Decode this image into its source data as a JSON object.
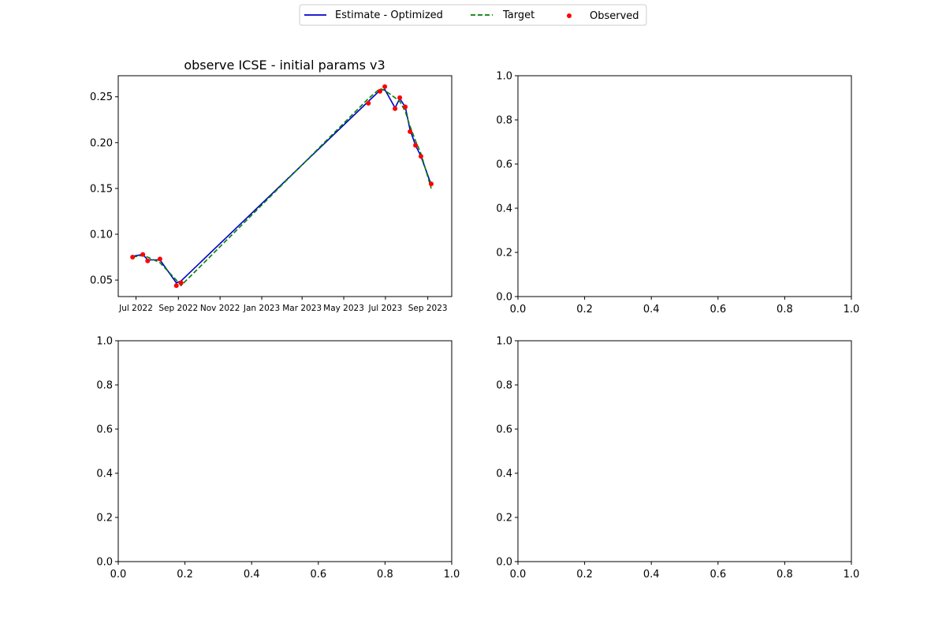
{
  "legend": {
    "entries": [
      {
        "label": "Estimate - Optimized",
        "color": "#0000cc",
        "style": "solid-line"
      },
      {
        "label": "Target",
        "color": "#008000",
        "style": "dashed-line"
      },
      {
        "label": "Observed",
        "color": "#ff0000",
        "style": "marker"
      }
    ]
  },
  "chart_data": [
    {
      "type": "line",
      "title": "observe ICSE - initial params v3",
      "xlabel": "",
      "ylabel": "",
      "x_axis_type": "date",
      "xlim": [
        "2022-06-05",
        "2023-10-06"
      ],
      "ylim": [
        0.032,
        0.273
      ],
      "xticks": [
        {
          "date": "2022-07-01",
          "label": "Jul 2022"
        },
        {
          "date": "2022-09-01",
          "label": "Sep 2022"
        },
        {
          "date": "2022-11-01",
          "label": "Nov 2022"
        },
        {
          "date": "2023-01-01",
          "label": "Jan 2023"
        },
        {
          "date": "2023-03-01",
          "label": "Mar 2023"
        },
        {
          "date": "2023-05-01",
          "label": "May 2023"
        },
        {
          "date": "2023-07-01",
          "label": "Jul 2023"
        },
        {
          "date": "2023-09-01",
          "label": "Sep 2023"
        }
      ],
      "yticks": [
        0.05,
        0.1,
        0.15,
        0.2,
        0.25
      ],
      "ytick_labels": [
        "0.05",
        "0.10",
        "0.15",
        "0.20",
        "0.25"
      ],
      "grid": false,
      "series": [
        {
          "name": "Estimate - Optimized",
          "color": "#0000cc",
          "style": "solid",
          "x": [
            "2022-06-26",
            "2022-07-11",
            "2022-07-18",
            "2022-08-05",
            "2022-08-29",
            "2022-09-05",
            "2023-06-06",
            "2023-06-23",
            "2023-06-30",
            "2023-07-15",
            "2023-07-22",
            "2023-07-30",
            "2023-08-06",
            "2023-08-14",
            "2023-08-22",
            "2023-09-06"
          ],
          "y": [
            0.076,
            0.078,
            0.072,
            0.072,
            0.047,
            0.049,
            0.245,
            0.257,
            0.258,
            0.238,
            0.248,
            0.239,
            0.214,
            0.197,
            0.185,
            0.154
          ]
        },
        {
          "name": "Target",
          "color": "#008000",
          "style": "dashed",
          "x": [
            "2022-06-26",
            "2022-07-11",
            "2022-07-18",
            "2022-08-05",
            "2022-08-29",
            "2022-09-05",
            "2023-06-06",
            "2023-06-23",
            "2023-06-30",
            "2023-07-15",
            "2023-07-22",
            "2023-07-30",
            "2023-08-06",
            "2023-08-14",
            "2023-08-22",
            "2023-09-06"
          ],
          "y": [
            0.075,
            0.077,
            0.075,
            0.069,
            0.05,
            0.044,
            0.248,
            0.259,
            0.257,
            0.249,
            0.245,
            0.234,
            0.218,
            0.202,
            0.188,
            0.15
          ]
        },
        {
          "name": "Observed",
          "color": "#ff0000",
          "style": "markers",
          "x": [
            "2022-06-26",
            "2022-07-11",
            "2022-07-18",
            "2022-08-05",
            "2022-08-29",
            "2022-09-05",
            "2023-06-06",
            "2023-06-23",
            "2023-06-30",
            "2023-07-15",
            "2023-07-22",
            "2023-07-30",
            "2023-08-06",
            "2023-08-14",
            "2023-08-22",
            "2023-09-06"
          ],
          "y": [
            0.075,
            0.078,
            0.071,
            0.073,
            0.044,
            0.047,
            0.243,
            0.256,
            0.261,
            0.237,
            0.249,
            0.239,
            0.212,
            0.197,
            0.185,
            0.155
          ]
        }
      ]
    },
    {
      "type": "line",
      "title": "",
      "xlabel": "",
      "ylabel": "",
      "xlim": [
        0.0,
        1.0
      ],
      "ylim": [
        0.0,
        1.0
      ],
      "xticks": [
        0.0,
        0.2,
        0.4,
        0.6,
        0.8,
        1.0
      ],
      "yticks": [
        0.0,
        0.2,
        0.4,
        0.6,
        0.8,
        1.0
      ],
      "series": []
    },
    {
      "type": "line",
      "title": "",
      "xlabel": "",
      "ylabel": "",
      "xlim": [
        0.0,
        1.0
      ],
      "ylim": [
        0.0,
        1.0
      ],
      "xticks": [
        0.0,
        0.2,
        0.4,
        0.6,
        0.8,
        1.0
      ],
      "yticks": [
        0.0,
        0.2,
        0.4,
        0.6,
        0.8,
        1.0
      ],
      "series": []
    },
    {
      "type": "line",
      "title": "",
      "xlabel": "",
      "ylabel": "",
      "xlim": [
        0.0,
        1.0
      ],
      "ylim": [
        0.0,
        1.0
      ],
      "xticks": [
        0.0,
        0.2,
        0.4,
        0.6,
        0.8,
        1.0
      ],
      "yticks": [
        0.0,
        0.2,
        0.4,
        0.6,
        0.8,
        1.0
      ],
      "series": []
    }
  ]
}
